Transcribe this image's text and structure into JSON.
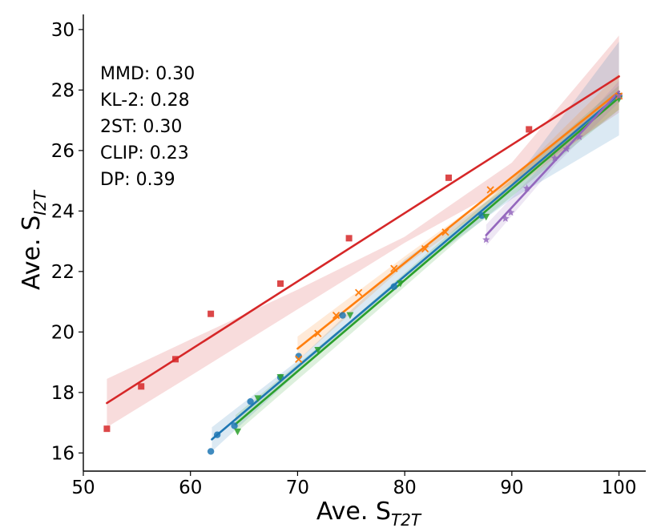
{
  "chart_data": {
    "type": "scatter",
    "title": "",
    "xlabel": "Ave. S",
    "xlabel_sub": "T2T",
    "ylabel": "Ave. S",
    "ylabel_sub": "I2T",
    "xlim": [
      50,
      102.5
    ],
    "ylim": [
      15.4,
      30.5
    ],
    "xticks": [
      50,
      60,
      70,
      80,
      90,
      100
    ],
    "yticks": [
      16,
      18,
      20,
      22,
      24,
      26,
      28,
      30
    ],
    "grid": false,
    "legend": "none",
    "annotations": [
      "MMD: 0.30",
      "KL-2: 0.28",
      "2ST: 0.30",
      "CLIP: 0.23",
      "DP: 0.39"
    ],
    "series": [
      {
        "name": "MMD",
        "color": "#d62728",
        "marker": "square",
        "points": [
          [
            52.2,
            16.8
          ],
          [
            55.4,
            18.2
          ],
          [
            58.6,
            19.1
          ],
          [
            61.9,
            20.6
          ],
          [
            68.4,
            21.6
          ],
          [
            74.8,
            23.1
          ],
          [
            84.1,
            25.1
          ],
          [
            91.6,
            26.7
          ],
          [
            100.0,
            27.8
          ]
        ],
        "fit": [
          [
            52.2,
            17.65
          ],
          [
            100.0,
            28.45
          ]
        ],
        "band_upper": [
          [
            52.2,
            18.45
          ],
          [
            60,
            19.75
          ],
          [
            70,
            21.4
          ],
          [
            80,
            23.15
          ],
          [
            90,
            25.6
          ],
          [
            100,
            29.8
          ]
        ],
        "band_lower": [
          [
            52.2,
            16.85
          ],
          [
            60,
            18.55
          ],
          [
            70,
            20.75
          ],
          [
            80,
            22.95
          ],
          [
            90,
            24.9
          ],
          [
            100,
            27.25
          ]
        ]
      },
      {
        "name": "KL-2",
        "color": "#1f77b4",
        "marker": "circle",
        "points": [
          [
            61.9,
            16.05
          ],
          [
            62.5,
            16.6
          ],
          [
            64.1,
            16.9
          ],
          [
            65.6,
            17.7
          ],
          [
            68.4,
            18.5
          ],
          [
            70.1,
            19.2
          ],
          [
            74.2,
            20.55
          ],
          [
            79.0,
            21.5
          ],
          [
            87.2,
            23.85
          ],
          [
            100.0,
            27.8
          ]
        ],
        "fit": [
          [
            62.0,
            16.45
          ],
          [
            100.0,
            27.85
          ]
        ],
        "band_upper": [
          [
            62,
            16.85
          ],
          [
            70,
            19.05
          ],
          [
            80,
            22.4
          ],
          [
            90,
            24.9
          ],
          [
            100,
            29.6
          ]
        ],
        "band_lower": [
          [
            62,
            16.05
          ],
          [
            70,
            18.65
          ],
          [
            80,
            21.8
          ],
          [
            90,
            24.4
          ],
          [
            100,
            26.5
          ]
        ]
      },
      {
        "name": "2ST",
        "color": "#2ca02c",
        "marker": "triangle-down",
        "points": [
          [
            64.4,
            16.7
          ],
          [
            66.3,
            17.8
          ],
          [
            68.4,
            18.5
          ],
          [
            71.9,
            19.4
          ],
          [
            74.9,
            20.55
          ],
          [
            79.6,
            21.6
          ],
          [
            87.6,
            23.8
          ],
          [
            100.0,
            27.7
          ]
        ],
        "fit": [
          [
            64.2,
            16.95
          ],
          [
            100.0,
            27.75
          ]
        ],
        "band_upper": [
          [
            64.2,
            17.25
          ],
          [
            75,
            20.4
          ],
          [
            85,
            23.5
          ],
          [
            100,
            28.15
          ]
        ],
        "band_lower": [
          [
            64.2,
            16.65
          ],
          [
            75,
            19.95
          ],
          [
            85,
            23.05
          ],
          [
            100,
            27.35
          ]
        ]
      },
      {
        "name": "CLIP",
        "color": "#ff7f0e",
        "marker": "x",
        "points": [
          [
            70.1,
            19.1
          ],
          [
            71.9,
            19.95
          ],
          [
            73.6,
            20.55
          ],
          [
            75.7,
            21.3
          ],
          [
            79.0,
            22.1
          ],
          [
            81.9,
            22.75
          ],
          [
            83.8,
            23.3
          ],
          [
            88.0,
            24.7
          ],
          [
            100.0,
            27.8
          ]
        ],
        "fit": [
          [
            70.0,
            19.45
          ],
          [
            100.0,
            27.95
          ]
        ],
        "band_upper": [
          [
            70,
            19.85
          ],
          [
            80,
            22.5
          ],
          [
            90,
            25.05
          ],
          [
            100,
            28.55
          ]
        ],
        "band_lower": [
          [
            70,
            19.05
          ],
          [
            80,
            22.2
          ],
          [
            90,
            24.7
          ],
          [
            100,
            27.35
          ]
        ]
      },
      {
        "name": "DP",
        "color": "#9467bd",
        "marker": "star",
        "points": [
          [
            87.6,
            23.05
          ],
          [
            89.4,
            23.75
          ],
          [
            89.9,
            23.95
          ],
          [
            91.4,
            24.75
          ],
          [
            94.0,
            25.75
          ],
          [
            95.1,
            26.05
          ],
          [
            96.3,
            26.45
          ],
          [
            100.0,
            27.8
          ]
        ],
        "fit": [
          [
            87.6,
            23.2
          ],
          [
            100.0,
            27.95
          ]
        ],
        "band_upper": [
          [
            87.6,
            23.55
          ],
          [
            94,
            25.95
          ],
          [
            100,
            28.3
          ]
        ],
        "band_lower": [
          [
            87.6,
            22.85
          ],
          [
            94,
            25.5
          ],
          [
            100,
            27.6
          ]
        ]
      }
    ]
  }
}
